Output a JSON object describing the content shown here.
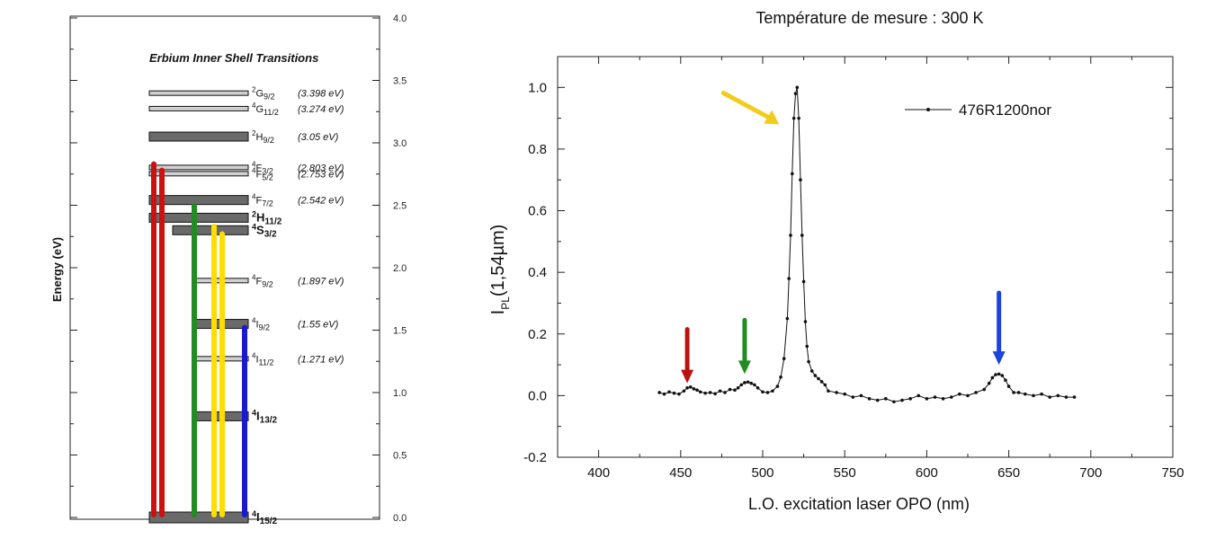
{
  "chart_data": [
    {
      "type": "diagram",
      "title": "Erbium Inner Shell Transitions",
      "ylabel": "Energy (eV)",
      "ylim": [
        0,
        4.0
      ],
      "y_ticks": [
        "0.0",
        "0.5",
        "1.0",
        "1.5",
        "2.0",
        "2.5",
        "3.0",
        "3.5",
        "4.0"
      ],
      "levels": [
        {
          "sym": "2",
          "main": "G",
          "sub": "9/2",
          "energy": 3.398,
          "value": "(3.398 eV)",
          "bold": false
        },
        {
          "sym": "4",
          "main": "G",
          "sub": "11/2",
          "energy": 3.274,
          "value": "(3.274 eV)",
          "bold": false
        },
        {
          "sym": "2",
          "main": "H",
          "sub": "9/2",
          "energy": 3.05,
          "value": "(3.05 eV)",
          "bold": false
        },
        {
          "sym": "4",
          "main": "F",
          "sub": "3/2",
          "energy": 2.803,
          "value": "(2.803 eV)",
          "bold": false
        },
        {
          "sym": "4",
          "main": "F",
          "sub": "5/2",
          "energy": 2.753,
          "value": "(2.753 eV)",
          "bold": false
        },
        {
          "sym": "4",
          "main": "F",
          "sub": "7/2",
          "energy": 2.542,
          "value": "(2.542 eV)",
          "bold": false
        },
        {
          "sym": "2",
          "main": "H",
          "sub": "11/2",
          "energy": 2.4,
          "value": "",
          "bold": true
        },
        {
          "sym": "4",
          "main": "S",
          "sub": "3/2",
          "energy": 2.3,
          "value": "",
          "bold": true
        },
        {
          "sym": "4",
          "main": "F",
          "sub": "9/2",
          "energy": 1.897,
          "value": "(1.897 eV)",
          "bold": false
        },
        {
          "sym": "4",
          "main": "I",
          "sub": "9/2",
          "energy": 1.55,
          "value": "(1.55 eV)",
          "bold": false
        },
        {
          "sym": "4",
          "main": "I",
          "sub": "11/2",
          "energy": 1.271,
          "value": "(1.271 eV)",
          "bold": false
        },
        {
          "sym": "4",
          "main": "I",
          "sub": "13/2",
          "energy": 0.81,
          "value": "",
          "bold": true
        },
        {
          "sym": "4",
          "main": "I",
          "sub": "15/2",
          "energy": 0.0,
          "value": "",
          "bold": true
        }
      ],
      "transitions": [
        {
          "color": "#cc1111",
          "from": 0.0,
          "to": 2.83
        },
        {
          "color": "#cc1111",
          "from": 0.0,
          "to": 2.78
        },
        {
          "color": "#228b22",
          "from": 0.0,
          "to": 2.5
        },
        {
          "color": "#ffdd00",
          "from": 0.0,
          "to": 2.33
        },
        {
          "color": "#ffdd00",
          "from": 0.0,
          "to": 2.27
        },
        {
          "color": "#1a1acc",
          "from": 0.0,
          "to": 1.52
        }
      ]
    },
    {
      "type": "line",
      "title": "Température de mesure : 300 K",
      "xlabel": "L.O. excitation laser OPO (nm)",
      "ylabel_main": "I",
      "ylabel_sub": "PL",
      "ylabel_rest": "(1,54µm)",
      "xlim": [
        375,
        750
      ],
      "ylim": [
        -0.2,
        1.1
      ],
      "x_ticks": [
        "400",
        "450",
        "500",
        "550",
        "600",
        "650",
        "700",
        "750"
      ],
      "y_ticks": [
        "-0.2",
        "0.0",
        "0.2",
        "0.4",
        "0.6",
        "0.8",
        "1.0"
      ],
      "legend": "476R1200nor",
      "legend_position": "top-right",
      "series": [
        {
          "name": "476R1200nor",
          "x": [
            437,
            440,
            443,
            446,
            449,
            452,
            454,
            456,
            458,
            460,
            462,
            465,
            468,
            471,
            474,
            477,
            480,
            483,
            485,
            487,
            489,
            491,
            493,
            495,
            497,
            500,
            503,
            506,
            509,
            511,
            513,
            515,
            516,
            517,
            518,
            519,
            520,
            521,
            522,
            523,
            524,
            525,
            526,
            527,
            528,
            530,
            532,
            534,
            536,
            538,
            540,
            545,
            550,
            555,
            560,
            565,
            570,
            575,
            580,
            585,
            590,
            595,
            600,
            605,
            610,
            615,
            620,
            625,
            630,
            635,
            638,
            640,
            642,
            644,
            646,
            648,
            650,
            653,
            656,
            660,
            665,
            670,
            675,
            680,
            685,
            690
          ],
          "y": [
            0.01,
            0.005,
            0.012,
            0.008,
            0.005,
            0.015,
            0.025,
            0.028,
            0.022,
            0.018,
            0.012,
            0.008,
            0.01,
            0.006,
            0.015,
            0.01,
            0.02,
            0.018,
            0.025,
            0.035,
            0.042,
            0.044,
            0.04,
            0.035,
            0.025,
            0.012,
            0.01,
            0.015,
            0.03,
            0.06,
            0.12,
            0.25,
            0.38,
            0.52,
            0.72,
            0.9,
            0.98,
            1.0,
            0.9,
            0.7,
            0.52,
            0.37,
            0.24,
            0.16,
            0.11,
            0.08,
            0.065,
            0.055,
            0.045,
            0.035,
            0.015,
            0.01,
            0.005,
            -0.005,
            0.0,
            -0.01,
            -0.015,
            -0.01,
            -0.02,
            -0.015,
            -0.01,
            0.0,
            -0.01,
            -0.005,
            -0.01,
            -0.005,
            0.005,
            0.0,
            0.01,
            0.02,
            0.04,
            0.058,
            0.068,
            0.07,
            0.065,
            0.05,
            0.03,
            0.01,
            0.01,
            0.005,
            0.0,
            0.005,
            -0.005,
            0.0,
            -0.005,
            -0.005
          ]
        }
      ],
      "arrows": [
        {
          "color": "#bb1111",
          "x": 454,
          "y": 0.04
        },
        {
          "color": "#228b22",
          "x": 489,
          "y": 0.07
        },
        {
          "color": "#1a44dd",
          "x": 644,
          "y": 0.1
        },
        {
          "color": "#f2cc1a",
          "x": 510,
          "y": 0.88
        }
      ]
    }
  ]
}
